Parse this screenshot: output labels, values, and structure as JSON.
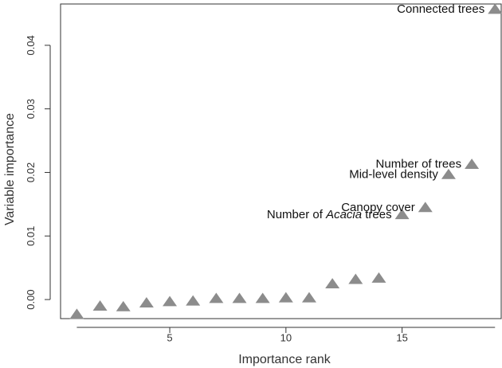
{
  "chart_data": {
    "type": "scatter",
    "title": "",
    "xlabel": "Importance rank",
    "ylabel": "Variable importance",
    "xlim": [
      0.3,
      19.3
    ],
    "ylim": [
      -0.003,
      0.0465
    ],
    "x_ticks": [
      5,
      10,
      15
    ],
    "y_ticks": [
      0.0,
      0.01,
      0.02,
      0.03,
      0.04
    ],
    "y_tick_labels": [
      "0.00",
      "0.01",
      "0.02",
      "0.03",
      "0.04"
    ],
    "marker": "triangle",
    "marker_color": "#8c8c8c",
    "grid": false,
    "legend": false,
    "series": [
      {
        "x": [
          1,
          2,
          3,
          4,
          5,
          6,
          7,
          8,
          9,
          10,
          11,
          12,
          13,
          14,
          15,
          16,
          17,
          18,
          19
        ],
        "y": [
          -0.0023,
          -0.001,
          -0.0011,
          -0.0005,
          -0.0003,
          -0.0002,
          0.0002,
          0.0002,
          0.0002,
          0.0003,
          0.0003,
          0.0025,
          0.0032,
          0.0034,
          0.0134,
          0.0145,
          0.0197,
          0.0213,
          0.0457
        ]
      }
    ],
    "annotations": [
      {
        "x": 19,
        "y": 0.0457,
        "text": "Connected trees"
      },
      {
        "x": 18,
        "y": 0.0213,
        "text": "Number of trees"
      },
      {
        "x": 17,
        "y": 0.0197,
        "text": "Mid-level density"
      },
      {
        "x": 16,
        "y": 0.0145,
        "text": "Canopy cover"
      },
      {
        "x": 15,
        "y": 0.0134,
        "text_before": "Number of ",
        "text_italic": "Acacia",
        "text_after": " trees"
      }
    ]
  }
}
